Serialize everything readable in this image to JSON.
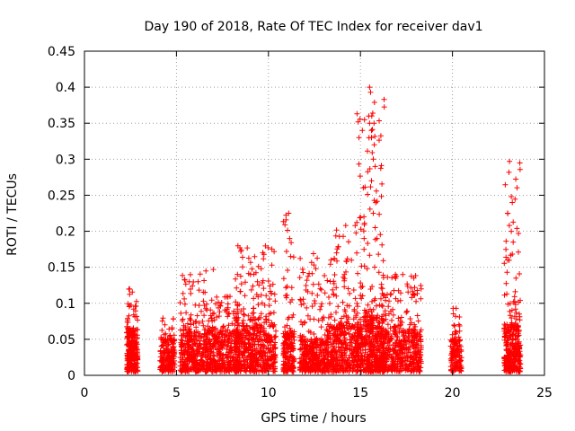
{
  "chart_data": {
    "type": "scatter",
    "title": "Day 190 of 2018, Rate Of TEC Index for receiver dav1",
    "xlabel": "GPS time / hours",
    "ylabel": "ROTI / TECUs",
    "xlim": [
      0,
      25
    ],
    "ylim": [
      0,
      0.45
    ],
    "x_ticks": [
      0,
      5,
      10,
      15,
      20,
      25
    ],
    "x_tick_labels": [
      "0",
      "5",
      "10",
      "15",
      "20",
      "25"
    ],
    "y_ticks": [
      0,
      0.05,
      0.1,
      0.15,
      0.2,
      0.25,
      0.3,
      0.35,
      0.4,
      0.45
    ],
    "y_tick_labels": [
      "0",
      "0.05",
      "0.1",
      "0.15",
      "0.2",
      "0.25",
      "0.3",
      "0.35",
      "0.4",
      "0.45"
    ],
    "grid": true,
    "marker": "+",
    "marker_color": "#ff0000",
    "series": [
      {
        "clusters": [
          {
            "x": [
              2.3,
              2.9
            ],
            "ymin": 0.005,
            "ydense": 0.06,
            "ymax": 0.12,
            "n": 260
          },
          {
            "x": [
              4.1,
              4.9
            ],
            "ymin": 0.005,
            "ydense": 0.05,
            "ymax": 0.08,
            "n": 200
          },
          {
            "x": [
              5.2,
              6.7
            ],
            "ymin": 0.005,
            "ydense": 0.06,
            "ymax": 0.145,
            "n": 380
          },
          {
            "x": [
              6.7,
              8.4
            ],
            "ymin": 0.005,
            "ydense": 0.06,
            "ymax": 0.11,
            "n": 380
          },
          {
            "x": [
              8.2,
              10.4
            ],
            "ymin": 0.005,
            "ydense": 0.07,
            "ymax": 0.18,
            "n": 520
          },
          {
            "x": [
              10.8,
              11.4
            ],
            "ymin": 0.005,
            "ydense": 0.06,
            "ymax": 0.225,
            "n": 180
          },
          {
            "x": [
              11.7,
              13.2
            ],
            "ymin": 0.005,
            "ydense": 0.05,
            "ymax": 0.17,
            "n": 360
          },
          {
            "x": [
              13.2,
              14.8
            ],
            "ymin": 0.005,
            "ydense": 0.07,
            "ymax": 0.21,
            "n": 380
          },
          {
            "x": [
              14.8,
              16.3
            ],
            "ymin": 0.005,
            "ydense": 0.08,
            "ymax": 0.4,
            "n": 560
          },
          {
            "x": [
              16.2,
              18.3
            ],
            "ymin": 0.005,
            "ydense": 0.06,
            "ymax": 0.14,
            "n": 460
          },
          {
            "x": [
              19.9,
              20.5
            ],
            "ymin": 0.005,
            "ydense": 0.05,
            "ymax": 0.095,
            "n": 140
          },
          {
            "x": [
              22.8,
              23.7
            ],
            "ymin": 0.005,
            "ydense": 0.07,
            "ymax": 0.297,
            "n": 340
          }
        ],
        "peaks": [
          {
            "x": 2.45,
            "y": 0.12
          },
          {
            "x": 5.7,
            "y": 0.13
          },
          {
            "x": 6.6,
            "y": 0.145
          },
          {
            "x": 7.0,
            "y": 0.147
          },
          {
            "x": 8.45,
            "y": 0.177
          },
          {
            "x": 8.5,
            "y": 0.172
          },
          {
            "x": 9.4,
            "y": 0.13
          },
          {
            "x": 11.1,
            "y": 0.225
          },
          {
            "x": 11.15,
            "y": 0.19
          },
          {
            "x": 11.2,
            "y": 0.165
          },
          {
            "x": 13.4,
            "y": 0.16
          },
          {
            "x": 13.7,
            "y": 0.17
          },
          {
            "x": 14.2,
            "y": 0.208
          },
          {
            "x": 14.25,
            "y": 0.158
          },
          {
            "x": 15.5,
            "y": 0.4
          },
          {
            "x": 15.55,
            "y": 0.393
          },
          {
            "x": 15.45,
            "y": 0.36
          },
          {
            "x": 15.5,
            "y": 0.35
          },
          {
            "x": 15.6,
            "y": 0.34
          },
          {
            "x": 15.6,
            "y": 0.33
          },
          {
            "x": 15.75,
            "y": 0.32
          },
          {
            "x": 15.7,
            "y": 0.3
          },
          {
            "x": 15.8,
            "y": 0.29
          },
          {
            "x": 15.6,
            "y": 0.27
          },
          {
            "x": 15.75,
            "y": 0.243
          },
          {
            "x": 15.7,
            "y": 0.225
          },
          {
            "x": 15.8,
            "y": 0.205
          },
          {
            "x": 15.2,
            "y": 0.19
          },
          {
            "x": 15.9,
            "y": 0.19
          },
          {
            "x": 16.9,
            "y": 0.14
          },
          {
            "x": 17.3,
            "y": 0.14
          },
          {
            "x": 17.9,
            "y": 0.135
          },
          {
            "x": 20.2,
            "y": 0.093
          },
          {
            "x": 23.1,
            "y": 0.297
          },
          {
            "x": 23.2,
            "y": 0.248
          },
          {
            "x": 23.25,
            "y": 0.24
          },
          {
            "x": 23.0,
            "y": 0.225
          },
          {
            "x": 23.2,
            "y": 0.2
          },
          {
            "x": 23.3,
            "y": 0.185
          },
          {
            "x": 23.0,
            "y": 0.16
          },
          {
            "x": 23.45,
            "y": 0.135
          }
        ]
      }
    ]
  }
}
